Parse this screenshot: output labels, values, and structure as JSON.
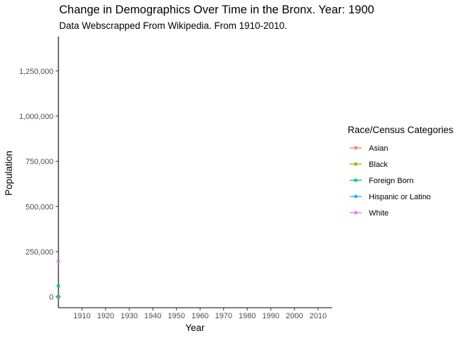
{
  "chart_data": {
    "type": "scatter",
    "title": "Change in Demographics Over Time in the Bronx. Year: 1900",
    "subtitle": "Data Webscrapped From Wikipedia. From 1910-2010.",
    "xlabel": "Year",
    "ylabel": "Population",
    "xlim": [
      1900,
      2016
    ],
    "ylim": [
      -60000,
      1440000
    ],
    "x_ticks": [
      1910,
      1920,
      1930,
      1940,
      1950,
      1960,
      1970,
      1980,
      1990,
      2000,
      2010
    ],
    "x_tick_labels": [
      "1910",
      "1920",
      "1930",
      "1940",
      "1950",
      "1960",
      "1970",
      "1980",
      "1990",
      "2000",
      "2010"
    ],
    "y_ticks": [
      0,
      250000,
      500000,
      750000,
      1000000,
      1250000
    ],
    "y_tick_labels": [
      "0",
      "250,000",
      "500,000",
      "750,000",
      "1,000,000",
      "1,250,000"
    ],
    "grid": false,
    "legend_title": "Race/Census Categories",
    "legend_position": "right",
    "series": [
      {
        "name": "Asian",
        "color": "#F8766D",
        "points": [
          {
            "x": 1900,
            "y": 0
          }
        ]
      },
      {
        "name": "Black",
        "color": "#A3A500",
        "points": [
          {
            "x": 1900,
            "y": 2400
          }
        ]
      },
      {
        "name": "Foreign Born",
        "color": "#00BF7D",
        "points": [
          {
            "x": 1900,
            "y": 61000
          }
        ]
      },
      {
        "name": "Hispanic or Latino",
        "color": "#00B0F6",
        "points": [
          {
            "x": 1900,
            "y": 1000
          }
        ]
      },
      {
        "name": "White",
        "color": "#E76BF3",
        "points": [
          {
            "x": 1900,
            "y": 197000
          }
        ]
      }
    ]
  }
}
